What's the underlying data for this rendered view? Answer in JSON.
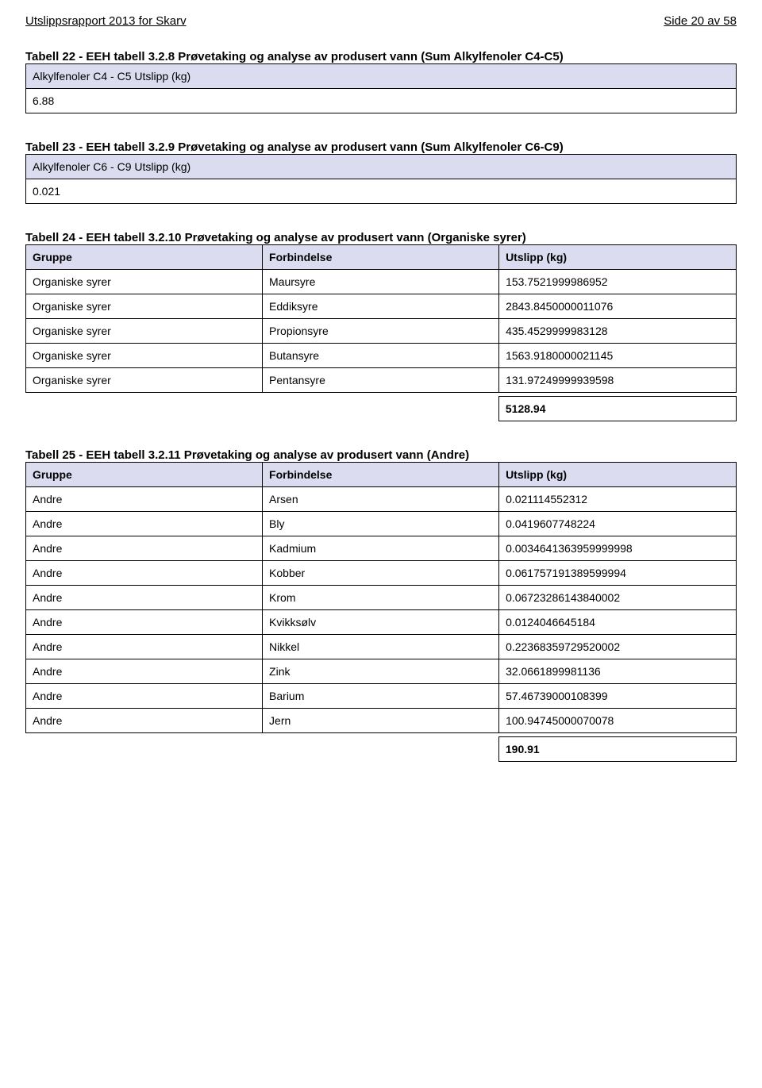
{
  "header": {
    "left": "Utslippsrapport 2013 for Skarv",
    "right": "Side 20 av 58"
  },
  "t22": {
    "title": "Tabell 22 - EEH tabell 3.2.8 Prøvetaking og analyse av produsert vann (Sum Alkylfenoler C4-C5)",
    "label": "Alkylfenoler C4 - C5 Utslipp (kg)",
    "value": "6.88"
  },
  "t23": {
    "title": "Tabell 23 - EEH tabell 3.2.9 Prøvetaking og analyse av produsert vann (Sum Alkylfenoler C6-C9)",
    "label": "Alkylfenoler C6 - C9 Utslipp (kg)",
    "value": "0.021"
  },
  "t24": {
    "title": "Tabell 24 - EEH tabell 3.2.10 Prøvetaking og analyse av produsert vann (Organiske syrer)",
    "headers": [
      "Gruppe",
      "Forbindelse",
      "Utslipp (kg)"
    ],
    "rows": [
      [
        "Organiske syrer",
        "Maursyre",
        "153.7521999986952"
      ],
      [
        "Organiske syrer",
        "Eddiksyre",
        "2843.8450000011076"
      ],
      [
        "Organiske syrer",
        "Propionsyre",
        "435.4529999983128"
      ],
      [
        "Organiske syrer",
        "Butansyre",
        "1563.9180000021145"
      ],
      [
        "Organiske syrer",
        "Pentansyre",
        "131.97249999939598"
      ]
    ],
    "total": "5128.94"
  },
  "t25": {
    "title": "Tabell 25 - EEH tabell 3.2.11 Prøvetaking og analyse av produsert vann (Andre)",
    "headers": [
      "Gruppe",
      "Forbindelse",
      "Utslipp (kg)"
    ],
    "rows": [
      [
        "Andre",
        "Arsen",
        "0.021114552312"
      ],
      [
        "Andre",
        "Bly",
        "0.0419607748224"
      ],
      [
        "Andre",
        "Kadmium",
        "0.0034641363959999998"
      ],
      [
        "Andre",
        "Kobber",
        "0.061757191389599994"
      ],
      [
        "Andre",
        "Krom",
        "0.06723286143840002"
      ],
      [
        "Andre",
        "Kvikksølv",
        "0.0124046645184"
      ],
      [
        "Andre",
        "Nikkel",
        "0.22368359729520002"
      ],
      [
        "Andre",
        "Zink",
        "32.0661899981136"
      ],
      [
        "Andre",
        "Barium",
        "57.46739000108399"
      ],
      [
        "Andre",
        "Jern",
        "100.94745000070078"
      ]
    ],
    "total": "190.91"
  }
}
